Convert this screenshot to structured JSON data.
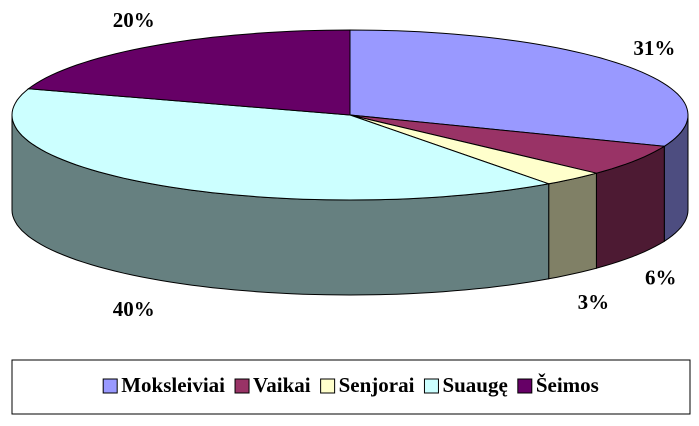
{
  "chart_data": {
    "type": "pie3d",
    "categories": [
      "Moksleiviai",
      "Vaikai",
      "Senjorai",
      "Suaugę",
      "Šeimos"
    ],
    "values": [
      31,
      6,
      3,
      40,
      20
    ],
    "value_labels": [
      "31%",
      "6%",
      "3%",
      "40%",
      "20%"
    ],
    "colors": [
      "#9999ff",
      "#993366",
      "#ffffcc",
      "#ccffff",
      "#660066"
    ],
    "legend": "bottom"
  }
}
